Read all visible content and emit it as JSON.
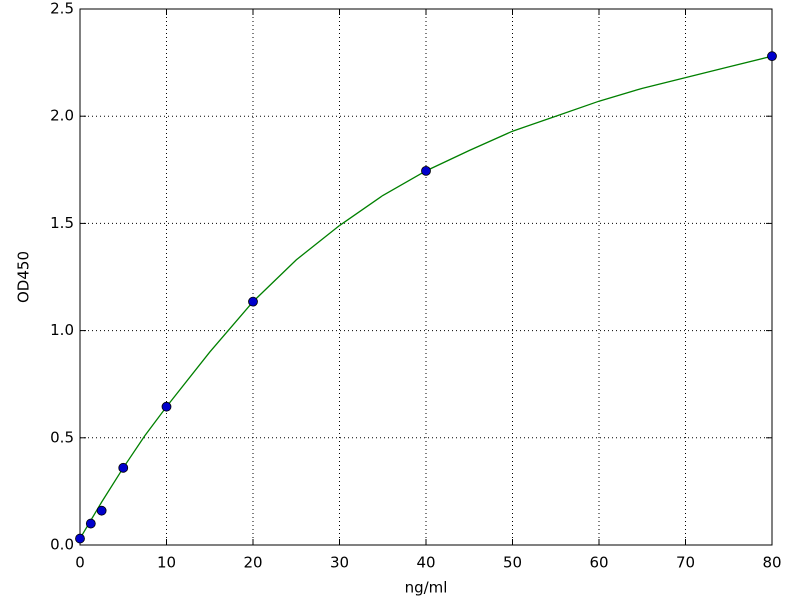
{
  "chart_data": {
    "type": "scatter",
    "x_label": "ng/ml",
    "y_label": "OD450",
    "x": [
      0,
      1.25,
      2.5,
      5,
      10,
      20,
      40,
      80
    ],
    "values": [
      0.03,
      0.1,
      0.16,
      0.36,
      0.645,
      1.135,
      1.745,
      2.28
    ],
    "color": "#0000cc",
    "fit": {
      "color": "#008000",
      "x": [
        0,
        2.5,
        5,
        7.5,
        10,
        15,
        20,
        25,
        30,
        35,
        40,
        45,
        50,
        55,
        60,
        65,
        70,
        75,
        80
      ],
      "values": [
        0.03,
        0.2,
        0.36,
        0.51,
        0.645,
        0.9,
        1.135,
        1.33,
        1.49,
        1.63,
        1.745,
        1.84,
        1.93,
        2.0,
        2.07,
        2.13,
        2.18,
        2.23,
        2.28
      ]
    },
    "xlim": [
      0,
      80
    ],
    "xticks": [
      0,
      10,
      20,
      30,
      40,
      50,
      60,
      70,
      80
    ],
    "ylim": [
      0,
      2.5
    ],
    "yticks": [
      {
        "value": 0,
        "label": "0.0"
      },
      0.5,
      {
        "value": 1,
        "label": "1.0"
      },
      1.5,
      {
        "value": 2,
        "label": "2.0"
      },
      2.5
    ],
    "grid": true
  }
}
